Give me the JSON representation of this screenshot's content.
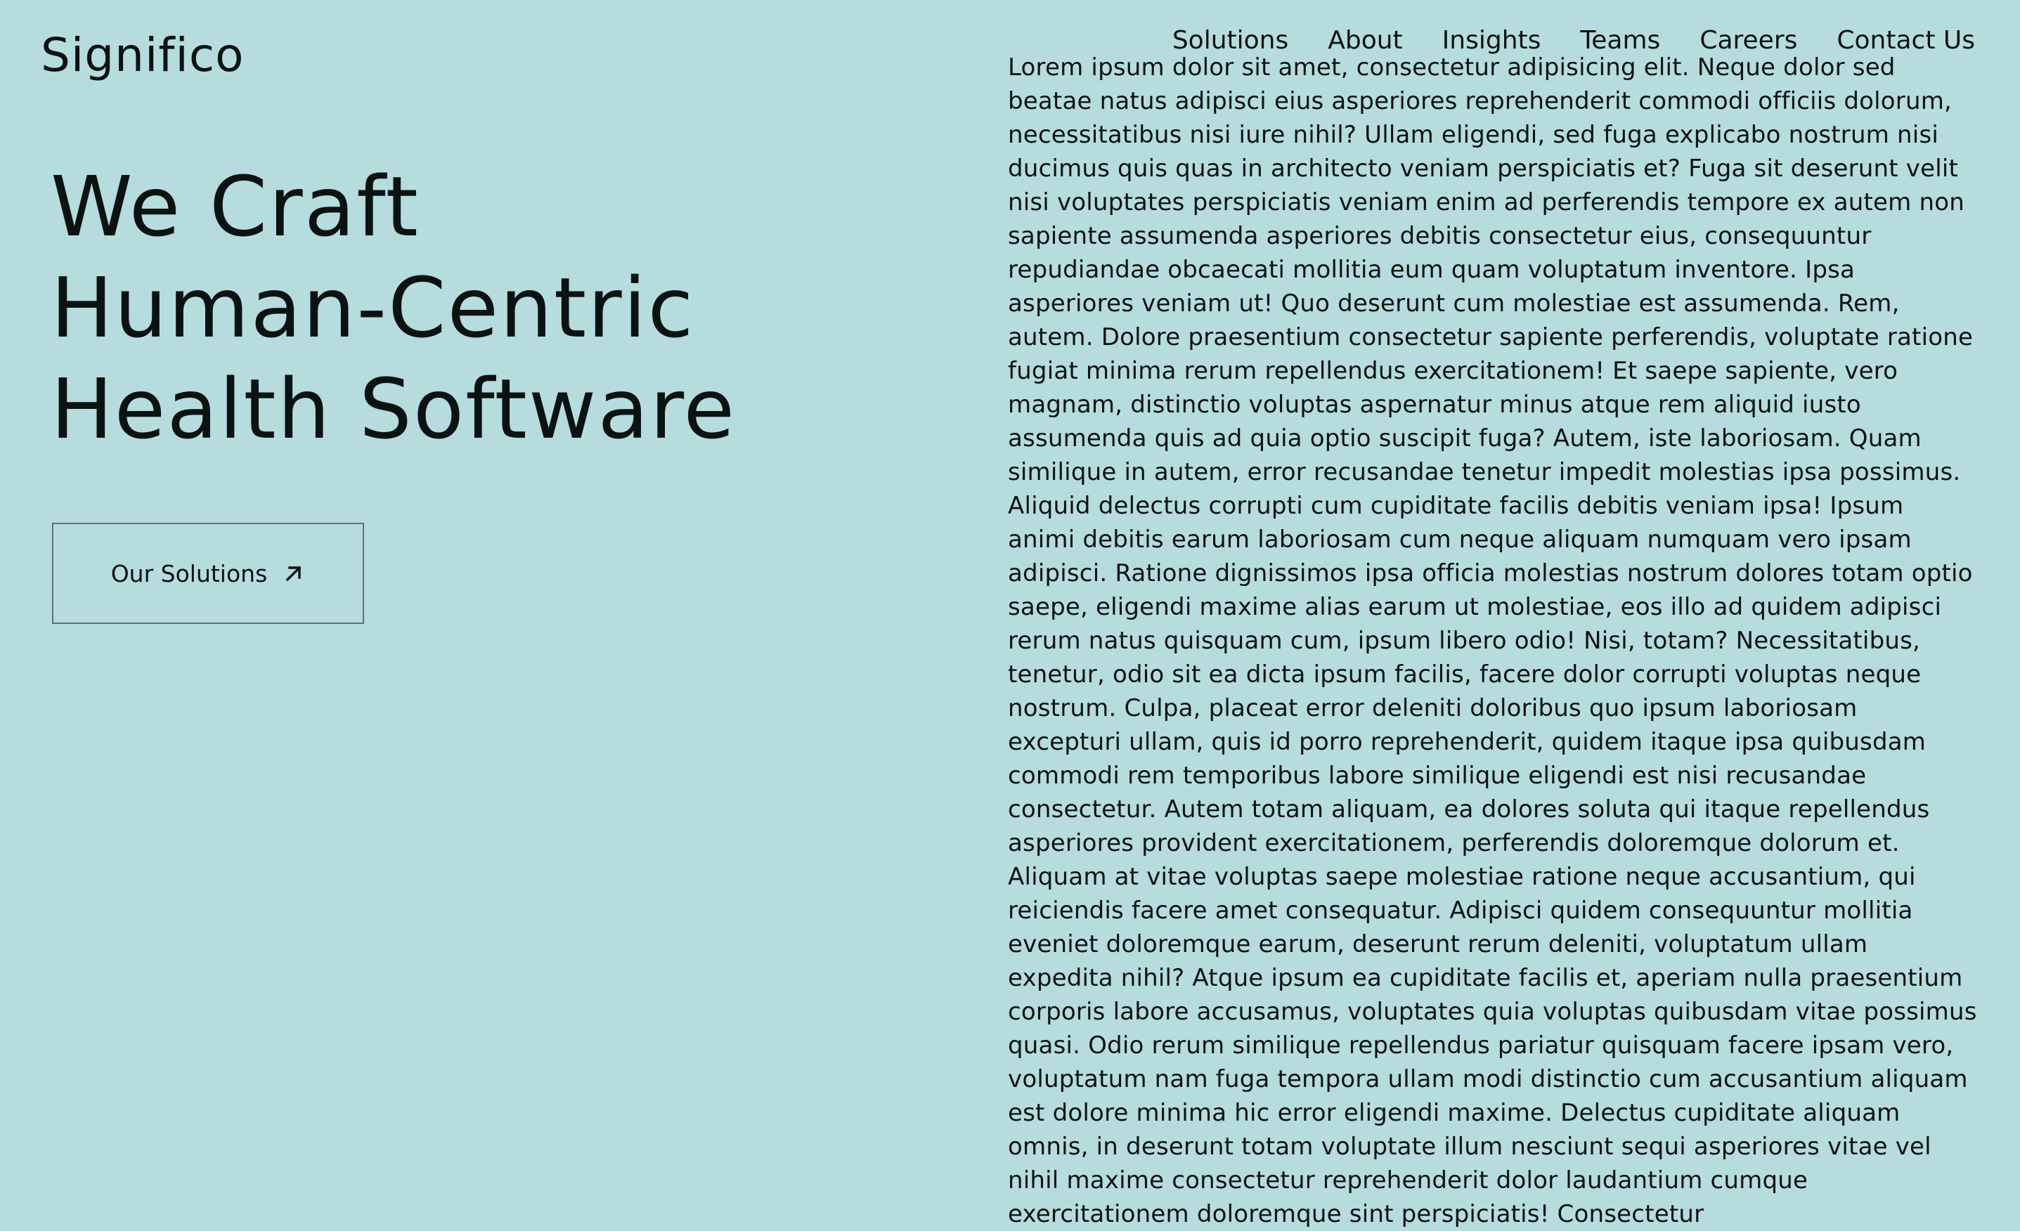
{
  "brand": {
    "logo_text": "Significo"
  },
  "nav": {
    "items": [
      {
        "label": "Solutions"
      },
      {
        "label": "About"
      },
      {
        "label": "Insights"
      },
      {
        "label": "Teams"
      },
      {
        "label": "Careers"
      },
      {
        "label": "Contact Us"
      }
    ]
  },
  "hero": {
    "headline_lines": [
      "We Craft",
      "Human-Centric",
      "Health Software"
    ],
    "cta_label": "Our Solutions",
    "cta_icon": "arrow-up-right-icon"
  },
  "content": {
    "paragraph": "Lorem ipsum dolor sit amet, consectetur adipisicing elit. Neque dolor sed beatae natus adipisci eius asperiores reprehenderit commodi officiis dolorum, necessitatibus nisi iure nihil? Ullam eligendi, sed fuga explicabo nostrum nisi ducimus quis quas in architecto veniam perspiciatis et? Fuga sit deserunt velit nisi voluptates perspiciatis veniam enim ad perferendis tempore ex autem non sapiente assumenda asperiores debitis consectetur eius, consequuntur repudiandae obcaecati mollitia eum quam voluptatum inventore. Ipsa asperiores veniam ut! Quo deserunt cum molestiae est assumenda. Rem, autem. Dolore praesentium consectetur sapiente perferendis, voluptate ratione fugiat minima rerum repellendus exercitationem! Et saepe sapiente, vero magnam, distinctio voluptas aspernatur minus atque rem aliquid iusto assumenda quis ad quia optio suscipit fuga? Autem, iste laboriosam. Quam similique in autem, error recusandae tenetur impedit molestias ipsa possimus. Aliquid delectus corrupti cum cupiditate facilis debitis veniam ipsa! Ipsum animi debitis earum laboriosam cum neque aliquam numquam vero ipsam adipisci. Ratione dignissimos ipsa officia molestias nostrum dolores totam optio saepe, eligendi maxime alias earum ut molestiae, eos illo ad quidem adipisci rerum natus quisquam cum, ipsum libero odio! Nisi, totam? Necessitatibus, tenetur, odio sit ea dicta ipsum facilis, facere dolor corrupti voluptas neque nostrum. Culpa, placeat error deleniti doloribus quo ipsum laboriosam excepturi ullam, quis id porro reprehenderit, quidem itaque ipsa quibusdam commodi rem temporibus labore similique eligendi est nisi recusandae consectetur. Autem totam aliquam, ea dolores soluta qui itaque repellendus asperiores provident exercitationem, perferendis doloremque dolorum et. Aliquam at vitae voluptas saepe molestiae ratione neque accusantium, qui reiciendis facere amet consequatur. Adipisci quidem consequuntur mollitia eveniet doloremque earum, deserunt rerum deleniti, voluptatum ullam expedita nihil? Atque ipsum ea cupiditate facilis et, aperiam nulla praesentium corporis labore accusamus, voluptates quia voluptas quibusdam vitae possimus quasi. Odio rerum similique repellendus pariatur quisquam facere ipsam vero, voluptatum nam fuga tempora ullam modi distinctio cum accusantium aliquam est dolore minima hic error eligendi maxime. Delectus cupiditate aliquam omnis, in deserunt totam voluptate illum nesciunt sequi asperiores vitae vel nihil maxime consectetur reprehenderit dolor laudantium cumque exercitationem doloremque sint perspiciatis! Consectetur"
  },
  "colors": {
    "background": "#b6dcdd",
    "text": "#0b1312",
    "button_border": "#5e7070"
  }
}
